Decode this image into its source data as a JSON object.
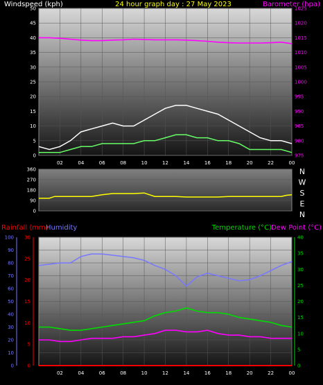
{
  "header": {
    "windspeed_label": "Windspeed (kph)",
    "title": "24 hour graph day : 27 May 2023",
    "barometer_label": "Barometer (hpa)"
  },
  "rain_header": {
    "rainfall_label": "Rainfall (mm)",
    "humidity_label": "Humidity",
    "temperature_label": "Temperature (°C)",
    "dewpoint_label": "Dew Point (°C)"
  },
  "colors": {
    "windspeed_label": "#ffffff",
    "title": "#ffff00",
    "barometer": "#ff00ff",
    "gust": "#ffffff",
    "avgwind": "#66ff66",
    "direction": "#ffff00",
    "rainfall": "#ff0000",
    "humidity": "#7777ff",
    "temperature": "#00dd00",
    "dewpoint": "#ff00ff"
  },
  "chart_data": [
    {
      "id": "wind",
      "type": "line",
      "title": "24 hour graph day : 27 May 2023",
      "xlabel": "",
      "x_ticks": [
        "02",
        "04",
        "06",
        "08",
        "10",
        "12",
        "14",
        "16",
        "18",
        "20",
        "22",
        "00"
      ],
      "ylabel_left": "Windspeed (kph)",
      "ylim_left": [
        0,
        50
      ],
      "yticks_left": [
        0,
        5,
        10,
        15,
        20,
        25,
        30,
        35,
        40,
        45,
        50
      ],
      "ylabel_right": "Barometer (hpa)",
      "ylim_right": [
        975,
        1025
      ],
      "yticks_right": [
        975,
        980,
        985,
        990,
        995,
        1000,
        1005,
        1010,
        1015,
        1020,
        1025
      ],
      "hours": [
        0,
        1,
        2,
        3,
        4,
        5,
        6,
        7,
        8,
        9,
        10,
        11,
        12,
        13,
        14,
        15,
        16,
        17,
        18,
        19,
        20,
        21,
        22,
        23,
        24
      ],
      "gust": [
        3,
        2,
        3,
        5,
        8,
        9,
        10,
        11,
        10,
        10,
        12,
        14,
        16,
        17,
        17,
        16,
        15,
        14,
        12,
        10,
        8,
        6,
        5,
        5,
        4
      ],
      "avgwind": [
        1,
        1,
        1,
        2,
        3,
        3,
        4,
        4,
        4,
        4,
        5,
        5,
        6,
        7,
        7,
        6,
        6,
        5,
        5,
        4,
        2,
        2,
        2,
        2,
        1
      ],
      "barometer": [
        1015,
        1015,
        1014.8,
        1014.5,
        1014.2,
        1014,
        1014,
        1014.2,
        1014.3,
        1014.5,
        1014.4,
        1014.3,
        1014.3,
        1014.3,
        1014.2,
        1014,
        1013.8,
        1013.5,
        1013.3,
        1013.2,
        1013.2,
        1013.2,
        1013.3,
        1013.5,
        1013
      ]
    },
    {
      "id": "direction",
      "type": "line",
      "xlabel": "",
      "ylim": [
        0,
        360
      ],
      "yticks": [
        0,
        90,
        180,
        270,
        360
      ],
      "compass_labels": [
        "N",
        "W",
        "S",
        "E",
        "N"
      ],
      "hours": [
        0,
        0.5,
        1,
        1.5,
        2,
        3,
        4,
        5,
        6,
        7,
        8,
        9,
        10,
        11,
        12,
        13,
        14,
        15,
        16,
        17,
        18,
        19,
        20,
        21,
        22,
        23,
        23.5,
        24
      ],
      "direction": [
        110,
        110,
        110,
        125,
        125,
        125,
        125,
        125,
        140,
        150,
        150,
        150,
        155,
        125,
        125,
        125,
        120,
        120,
        120,
        120,
        125,
        125,
        125,
        125,
        125,
        125,
        135,
        140
      ]
    },
    {
      "id": "rain",
      "type": "line",
      "x_ticks": [
        "02",
        "04",
        "06",
        "08",
        "10",
        "12",
        "14",
        "16",
        "18",
        "20",
        "22",
        "00"
      ],
      "ylabel_left_outer": "Humidity",
      "ylim_left_outer": [
        0,
        100
      ],
      "yticks_left_outer": [
        0,
        10,
        20,
        30,
        40,
        50,
        60,
        70,
        80,
        90,
        100
      ],
      "ylabel_left_inner": "Rainfall (mm)",
      "ylim_left_inner": [
        0,
        30
      ],
      "yticks_left_inner": [
        0,
        5,
        10,
        15,
        20,
        25,
        30
      ],
      "ylabel_right": "Temperature (°C)",
      "ylim_right": [
        0,
        40
      ],
      "yticks_right": [
        0,
        5,
        10,
        15,
        20,
        25,
        30,
        35,
        40
      ],
      "hours": [
        0,
        1,
        2,
        3,
        4,
        5,
        6,
        7,
        8,
        9,
        10,
        11,
        12,
        13,
        14,
        15,
        16,
        17,
        18,
        19,
        20,
        21,
        22,
        23,
        24
      ],
      "humidity": [
        78,
        79,
        80,
        80,
        85,
        87,
        87,
        86,
        85,
        84,
        82,
        78,
        75,
        70,
        62,
        69,
        72,
        70,
        68,
        66,
        67,
        70,
        74,
        78,
        81
      ],
      "temperature": [
        12,
        12,
        11.5,
        11,
        11,
        11.5,
        12,
        12.5,
        13,
        13.5,
        14,
        15.5,
        16.5,
        17,
        18,
        17,
        16.5,
        16.5,
        16,
        15,
        14.5,
        14,
        13.5,
        12.5,
        12
      ],
      "dewpoint": [
        8,
        8,
        7.5,
        7.5,
        8,
        8.5,
        8.5,
        8.5,
        9,
        9,
        9.5,
        10,
        11,
        11,
        10.5,
        10.5,
        11,
        10,
        9.5,
        9.5,
        9,
        9,
        8.5,
        8.5,
        8.5
      ],
      "rainfall": [
        0,
        0,
        0,
        0,
        0,
        0,
        0,
        0,
        0,
        0,
        0,
        0,
        0,
        0,
        0,
        0,
        0,
        0,
        0,
        0,
        0,
        0,
        0,
        0,
        0
      ]
    }
  ]
}
